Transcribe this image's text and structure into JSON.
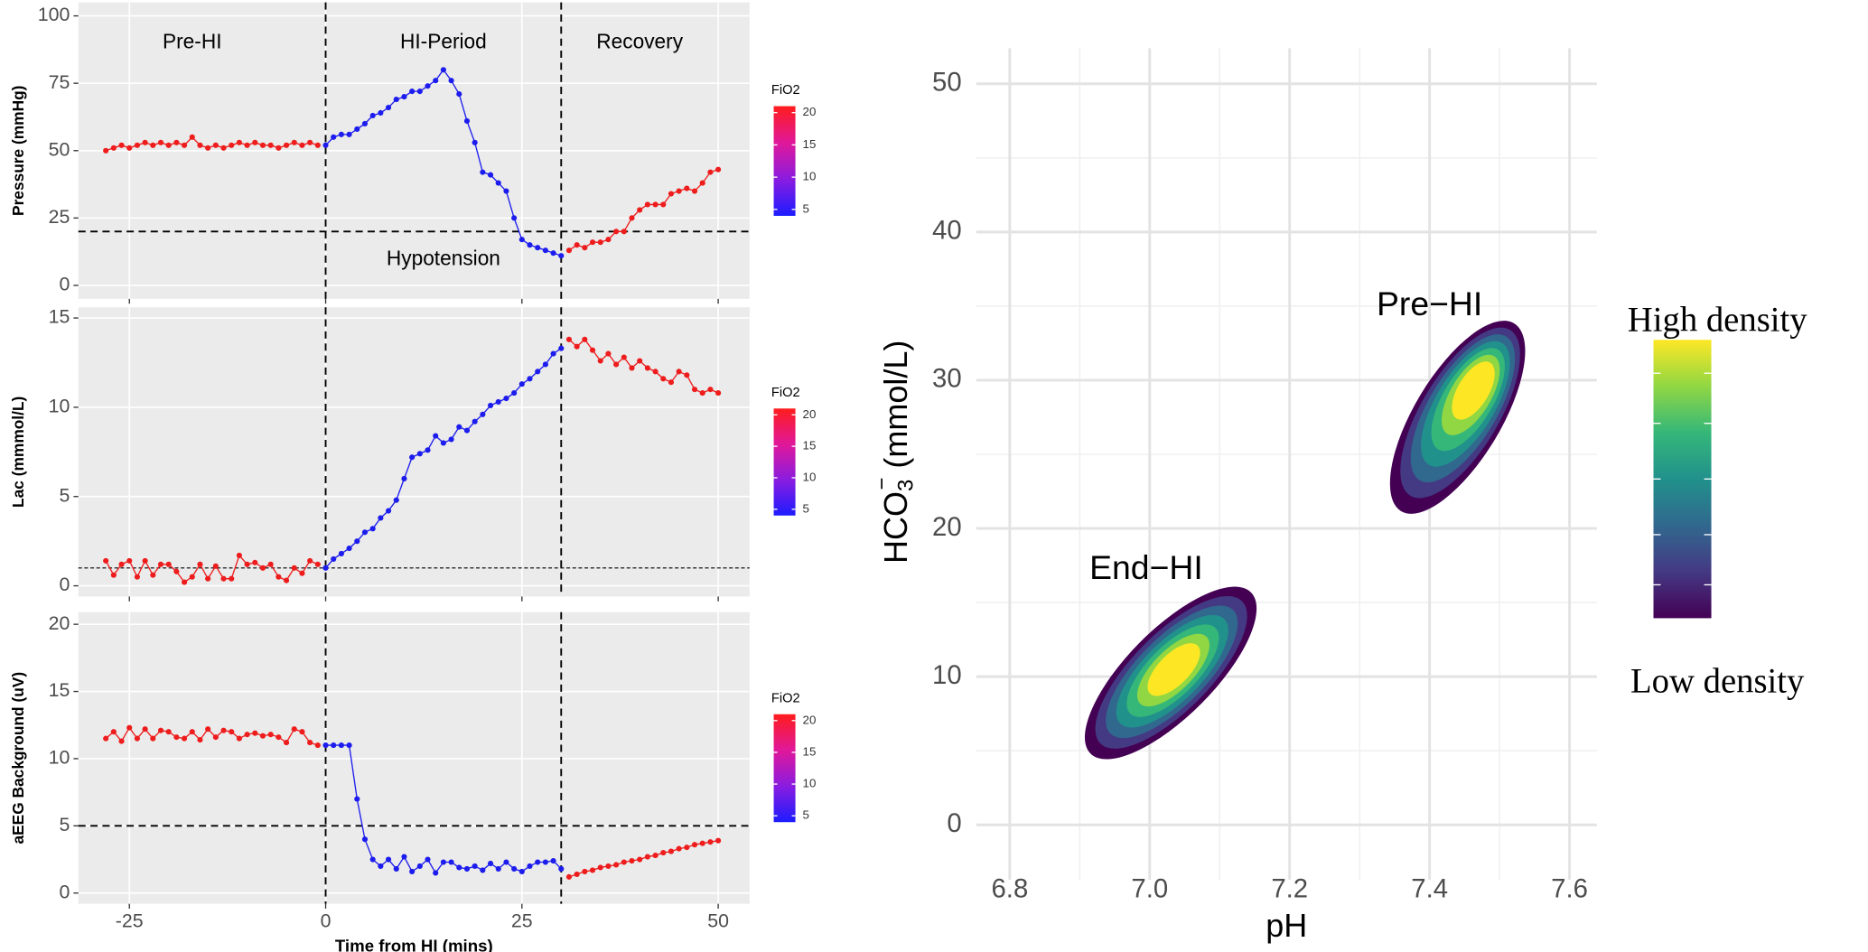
{
  "chart_data": [
    {
      "type": "line",
      "ylabel": "Pressure (mmHg)",
      "xlim": [
        -31.5,
        54
      ],
      "ylim": [
        -5,
        105
      ],
      "xticks": [
        -25,
        0,
        25,
        50
      ],
      "yticks": [
        0,
        25,
        50,
        75,
        100
      ],
      "grid": true,
      "series": [
        {
          "color": "#ee1c1c",
          "x": [
            -28,
            -27,
            -26,
            -25,
            -24,
            -23,
            -22,
            -21,
            -20,
            -19,
            -18,
            -17,
            -16,
            -15,
            -14,
            -13,
            -12,
            -11,
            -10,
            -9,
            -8,
            -7,
            -6,
            -5,
            -4,
            -3,
            -2,
            -1
          ],
          "values": [
            50,
            51,
            52,
            51,
            52,
            53,
            52,
            53,
            52,
            53,
            52,
            55,
            52,
            51,
            52,
            51,
            52,
            53,
            52,
            53,
            52,
            52,
            51,
            52,
            53,
            52,
            53,
            52
          ]
        },
        {
          "color": "#1c1cee",
          "x": [
            0,
            1,
            2,
            3,
            4,
            5,
            6,
            7,
            8,
            9,
            10,
            11,
            12,
            13,
            14,
            15,
            16,
            17,
            18,
            19,
            20,
            21,
            22,
            23,
            24,
            25,
            26,
            27,
            28,
            29,
            30
          ],
          "values": [
            52,
            55,
            56,
            56,
            58,
            60,
            63,
            64,
            66,
            69,
            70,
            72,
            72,
            74,
            76,
            80,
            76,
            71,
            61,
            53,
            42,
            41,
            38,
            35,
            25,
            17,
            15,
            14,
            13,
            12,
            11
          ]
        },
        {
          "color": "#ee1c1c",
          "x": [
            31,
            32,
            33,
            34,
            35,
            36,
            37,
            38,
            39,
            40,
            41,
            42,
            43,
            44,
            45,
            46,
            47,
            48,
            49,
            50
          ],
          "values": [
            13,
            15,
            14,
            16,
            16,
            17,
            20,
            20,
            25,
            28,
            30,
            30,
            30,
            34,
            35,
            36,
            35,
            38,
            42,
            43
          ]
        }
      ],
      "vlines": [
        0,
        30
      ],
      "hlines": [
        {
          "value": 20,
          "style": "dashed"
        }
      ],
      "annotations": [
        {
          "text": "Pre-HI",
          "x": -17,
          "y": 90
        },
        {
          "text": "HI-Period",
          "x": 15,
          "y": 90
        },
        {
          "text": "Recovery",
          "x": 40,
          "y": 90
        },
        {
          "text": "Hypotension",
          "x": 15,
          "y": 9.5
        }
      ],
      "colorbar": {
        "title": "FiO2",
        "lim": [
          4,
          21
        ],
        "ticks": [
          5,
          10,
          15,
          20
        ],
        "colors": [
          "#1c1cff",
          "#8a1ce0",
          "#e0189a",
          "#ff1c1c"
        ]
      }
    },
    {
      "type": "line",
      "ylabel": "Lac (mmmol/L)",
      "xlim": [
        -31.5,
        54
      ],
      "ylim": [
        -0.6,
        15.6
      ],
      "xticks": [
        -25,
        0,
        25,
        50
      ],
      "yticks": [
        0,
        5,
        10,
        15
      ],
      "grid": true,
      "series": [
        {
          "color": "#ee1c1c",
          "x": [
            -28,
            -27,
            -26,
            -25,
            -24,
            -23,
            -22,
            -21,
            -20,
            -19,
            -18,
            -17,
            -16,
            -15,
            -14,
            -13,
            -12,
            -11,
            -10,
            -9,
            -8,
            -7,
            -6,
            -5,
            -4,
            -3,
            -2,
            -1
          ],
          "values": [
            1.4,
            0.6,
            1.2,
            1.4,
            0.5,
            1.4,
            0.6,
            1.2,
            1.2,
            0.8,
            0.2,
            0.5,
            1.2,
            0.4,
            1.1,
            0.4,
            0.4,
            1.7,
            1.2,
            1.3,
            1.0,
            1.2,
            0.5,
            0.3,
            1.0,
            0.7,
            1.4,
            1.2
          ]
        },
        {
          "color": "#1c1cee",
          "x": [
            0,
            1,
            2,
            3,
            4,
            5,
            6,
            7,
            8,
            9,
            10,
            11,
            12,
            13,
            14,
            15,
            16,
            17,
            18,
            19,
            20,
            21,
            22,
            23,
            24,
            25,
            26,
            27,
            28,
            29,
            30
          ],
          "values": [
            1.0,
            1.5,
            1.8,
            2.1,
            2.5,
            3.0,
            3.2,
            3.8,
            4.2,
            4.8,
            6.0,
            7.2,
            7.4,
            7.6,
            8.4,
            8.0,
            8.2,
            8.9,
            8.7,
            9.2,
            9.6,
            10.1,
            10.3,
            10.5,
            10.8,
            11.3,
            11.6,
            12.0,
            12.4,
            13.0,
            13.3
          ]
        },
        {
          "color": "#ee1c1c",
          "x": [
            31,
            32,
            33,
            34,
            35,
            36,
            37,
            38,
            39,
            40,
            41,
            42,
            43,
            44,
            45,
            46,
            47,
            48,
            49,
            50
          ],
          "values": [
            13.8,
            13.4,
            13.8,
            13.2,
            12.6,
            13.0,
            12.4,
            12.8,
            12.2,
            12.6,
            12.2,
            12.0,
            11.6,
            11.4,
            12.0,
            11.8,
            11.0,
            10.8,
            11.0,
            10.8
          ]
        }
      ],
      "vlines": [
        0,
        30
      ],
      "hlines": [
        {
          "value": 1,
          "style": "dotted"
        }
      ],
      "colorbar": {
        "title": "FiO2",
        "lim": [
          4,
          21
        ],
        "ticks": [
          5,
          10,
          15,
          20
        ],
        "colors": [
          "#1c1cff",
          "#8a1ce0",
          "#e0189a",
          "#ff1c1c"
        ]
      }
    },
    {
      "type": "line",
      "ylabel": "aEEG Background (uV)",
      "xlabel": "Time from HI (mins)",
      "xlim": [
        -31.5,
        54
      ],
      "ylim": [
        -0.8,
        20.9
      ],
      "xticks": [
        -25,
        0,
        25,
        50
      ],
      "yticks": [
        0,
        5,
        10,
        15,
        20
      ],
      "grid": true,
      "series": [
        {
          "color": "#ee1c1c",
          "x": [
            -28,
            -27,
            -26,
            -25,
            -24,
            -23,
            -22,
            -21,
            -20,
            -19,
            -18,
            -17,
            -16,
            -15,
            -14,
            -13,
            -12,
            -11,
            -10,
            -9,
            -8,
            -7,
            -6,
            -5,
            -4,
            -3,
            -2,
            -1
          ],
          "values": [
            11.5,
            12,
            11.3,
            12.3,
            11.5,
            12.2,
            11.5,
            12.1,
            12,
            11.6,
            11.5,
            12,
            11.4,
            12.2,
            11.6,
            12.1,
            12,
            11.5,
            11.8,
            11.9,
            11.7,
            11.8,
            11.6,
            11.2,
            12.2,
            12,
            11.2,
            11
          ]
        },
        {
          "color": "#1c1cee",
          "x": [
            0,
            1,
            2,
            3,
            4,
            5,
            6,
            7,
            8,
            9,
            10,
            11,
            12,
            13,
            14,
            15,
            16,
            17,
            18,
            19,
            20,
            21,
            22,
            23,
            24,
            25,
            26,
            27,
            28,
            29,
            30
          ],
          "values": [
            11,
            11,
            11,
            11,
            7,
            4,
            2.5,
            2,
            2.5,
            1.8,
            2.7,
            1.6,
            2,
            2.5,
            1.5,
            2.3,
            2.3,
            1.9,
            1.8,
            2,
            1.7,
            2.2,
            1.8,
            2.3,
            1.8,
            1.6,
            2.0,
            2.3,
            2.3,
            2.4,
            1.8
          ]
        },
        {
          "color": "#ee1c1c",
          "x": [
            31,
            32,
            33,
            34,
            35,
            36,
            37,
            38,
            39,
            40,
            41,
            42,
            43,
            44,
            45,
            46,
            47,
            48,
            49,
            50
          ],
          "values": [
            1.2,
            1.4,
            1.6,
            1.7,
            1.9,
            2,
            2.1,
            2.3,
            2.4,
            2.5,
            2.7,
            2.8,
            3,
            3.1,
            3.3,
            3.4,
            3.6,
            3.7,
            3.8,
            3.9
          ]
        }
      ],
      "vlines": [
        0,
        30
      ],
      "hlines": [
        {
          "value": 5,
          "style": "dashed"
        }
      ],
      "colorbar": {
        "title": "FiO2",
        "lim": [
          4,
          21
        ],
        "ticks": [
          5,
          10,
          15,
          20
        ],
        "colors": [
          "#1c1cff",
          "#8a1ce0",
          "#e0189a",
          "#ff1c1c"
        ]
      }
    },
    {
      "type": "density",
      "xlabel": "pH",
      "ylabel": {
        "base": "HCO",
        "sub": "3",
        "sup": "−",
        "unit": " (mmol/L)"
      },
      "xlim": [
        6.752,
        7.639
      ],
      "ylim": [
        -3.7,
        52.4
      ],
      "xticks": [
        {
          "value": 6.8,
          "label": "6.8"
        },
        {
          "value": 7.0,
          "label": "7.0"
        },
        {
          "value": 7.2,
          "label": "7.2"
        },
        {
          "value": 7.4,
          "label": "7.4"
        },
        {
          "value": 7.6,
          "label": "7.6"
        }
      ],
      "yticks": [
        0,
        10,
        20,
        30,
        40,
        50
      ],
      "xminor": [
        6.9,
        7.1,
        7.3,
        7.5
      ],
      "yminor": [
        5,
        15,
        25,
        35,
        45
      ],
      "grid": true,
      "clusters": [
        {
          "label": "Pre−HI",
          "label_at": [
            7.4,
            35
          ],
          "ph_range": [
            7.37,
            7.51
          ],
          "hco3_range": [
            22,
            33
          ],
          "peak": [
            7.465,
            29.5
          ]
        },
        {
          "label": "End−HI",
          "label_at": [
            6.995,
            17.2
          ],
          "ph_range": [
            6.93,
            7.13
          ],
          "hco3_range": [
            5.5,
            15
          ],
          "peak": [
            7.035,
            10.5
          ]
        }
      ],
      "colors": [
        "#440154",
        "#443983",
        "#31688e",
        "#21918c",
        "#35b779",
        "#90d743",
        "#fde725"
      ],
      "legend": {
        "high": "High density",
        "low": "Low density"
      }
    }
  ]
}
